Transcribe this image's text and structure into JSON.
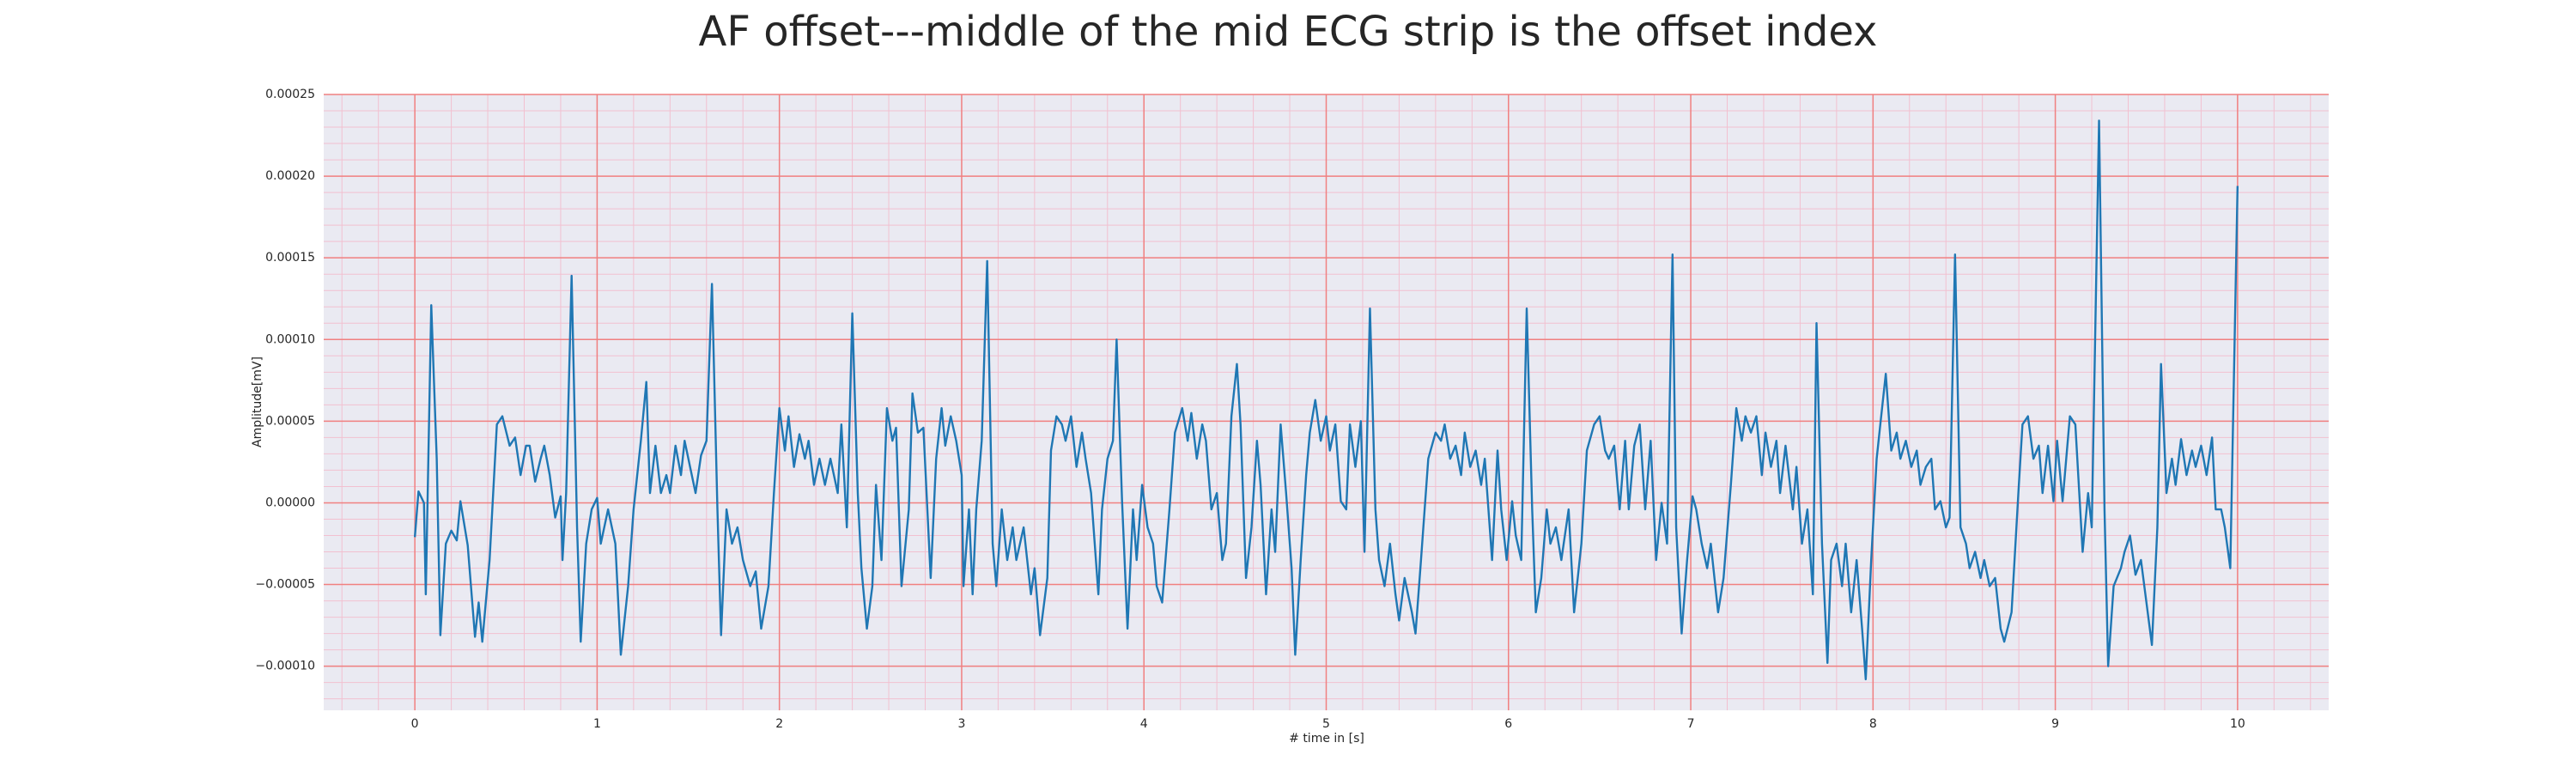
{
  "chart_data": {
    "type": "line",
    "title": "AF offset---middle of the mid ECG strip is the offset index",
    "x_label": "# time in [s]",
    "y_label": "Amplitude[mV]",
    "color": "#1f77b4",
    "grid": true,
    "minor_grid": true,
    "xlim": [
      -0.5,
      10.5
    ],
    "xticks": [
      0,
      1,
      2,
      3,
      4,
      5,
      6,
      7,
      8,
      9,
      10
    ],
    "ylim": [
      -0.000127,
      0.00025
    ],
    "yticks": [
      {
        "value": -0.0001,
        "label": "−0.00010"
      },
      {
        "value": -5e-05,
        "label": "−0.00005"
      },
      {
        "value": 0,
        "label": "0.00000"
      },
      {
        "value": 5e-05,
        "label": "0.00005"
      },
      {
        "value": 0.0001,
        "label": "0.00010"
      },
      {
        "value": 0.00015,
        "label": "0.00015"
      },
      {
        "value": 0.0002,
        "label": "0.00020"
      },
      0.00025
    ],
    "x": [
      0,
      0.02,
      0.05,
      0.06,
      0.09,
      0.12,
      0.14,
      0.17,
      0.2,
      0.23,
      0.25,
      0.29,
      0.33,
      0.35,
      0.37,
      0.41,
      0.45,
      0.48,
      0.52,
      0.55,
      0.58,
      0.61,
      0.63,
      0.66,
      0.69,
      0.71,
      0.74,
      0.77,
      0.8,
      0.81,
      0.83,
      0.86,
      0.89,
      0.91,
      0.94,
      0.97,
      1.0,
      1.02,
      1.06,
      1.1,
      1.13,
      1.17,
      1.2,
      1.24,
      1.27,
      1.29,
      1.32,
      1.35,
      1.38,
      1.4,
      1.43,
      1.46,
      1.48,
      1.51,
      1.54,
      1.57,
      1.6,
      1.63,
      1.66,
      1.68,
      1.71,
      1.74,
      1.77,
      1.8,
      1.84,
      1.87,
      1.9,
      1.94,
      1.97,
      2.0,
      2.03,
      2.05,
      2.08,
      2.11,
      2.14,
      2.16,
      2.19,
      2.22,
      2.25,
      2.28,
      2.32,
      2.34,
      2.37,
      2.4,
      2.43,
      2.45,
      2.48,
      2.51,
      2.53,
      2.56,
      2.59,
      2.62,
      2.64,
      2.67,
      2.71,
      2.73,
      2.76,
      2.79,
      2.81,
      2.83,
      2.86,
      2.89,
      2.91,
      2.94,
      2.97,
      3.0,
      3.01,
      3.04,
      3.06,
      3.08,
      3.11,
      3.14,
      3.17,
      3.19,
      3.22,
      3.25,
      3.28,
      3.3,
      3.34,
      3.38,
      3.4,
      3.43,
      3.47,
      3.49,
      3.52,
      3.55,
      3.57,
      3.6,
      3.63,
      3.66,
      3.68,
      3.71,
      3.75,
      3.77,
      3.8,
      3.83,
      3.85,
      3.88,
      3.91,
      3.94,
      3.96,
      3.99,
      4.02,
      4.05,
      4.07,
      4.1,
      4.14,
      4.17,
      4.21,
      4.24,
      4.26,
      4.29,
      4.32,
      4.34,
      4.37,
      4.4,
      4.43,
      4.45,
      4.48,
      4.51,
      4.53,
      4.56,
      4.59,
      4.62,
      4.64,
      4.67,
      4.7,
      4.72,
      4.75,
      4.78,
      4.81,
      4.83,
      4.86,
      4.89,
      4.91,
      4.94,
      4.97,
      5.0,
      5.02,
      5.05,
      5.08,
      5.11,
      5.13,
      5.16,
      5.19,
      5.21,
      5.24,
      5.27,
      5.29,
      5.32,
      5.35,
      5.38,
      5.4,
      5.43,
      5.47,
      5.49,
      5.52,
      5.56,
      5.6,
      5.63,
      5.65,
      5.68,
      5.71,
      5.74,
      5.76,
      5.79,
      5.82,
      5.85,
      5.87,
      5.91,
      5.94,
      5.96,
      5.99,
      6.02,
      6.04,
      6.07,
      6.1,
      6.13,
      6.15,
      6.18,
      6.21,
      6.23,
      6.26,
      6.29,
      6.33,
      6.36,
      6.4,
      6.43,
      6.47,
      6.5,
      6.53,
      6.55,
      6.58,
      6.61,
      6.64,
      6.66,
      6.69,
      6.72,
      6.75,
      6.78,
      6.81,
      6.84,
      6.87,
      6.9,
      6.92,
      6.95,
      6.98,
      7.01,
      7.03,
      7.06,
      7.09,
      7.11,
      7.15,
      7.18,
      7.22,
      7.25,
      7.28,
      7.3,
      7.33,
      7.36,
      7.39,
      7.41,
      7.44,
      7.47,
      7.49,
      7.52,
      7.56,
      7.58,
      7.61,
      7.64,
      7.67,
      7.69,
      7.72,
      7.75,
      7.77,
      7.8,
      7.83,
      7.85,
      7.88,
      7.91,
      7.94,
      7.96,
      7.99,
      8.02,
      8.04,
      8.07,
      8.1,
      8.13,
      8.15,
      8.18,
      8.21,
      8.24,
      8.26,
      8.29,
      8.32,
      8.34,
      8.37,
      8.4,
      8.42,
      8.45,
      8.48,
      8.51,
      8.53,
      8.56,
      8.59,
      8.61,
      8.64,
      8.67,
      8.7,
      8.72,
      8.76,
      8.8,
      8.82,
      8.85,
      8.88,
      8.91,
      8.93,
      8.96,
      8.99,
      9.01,
      9.04,
      9.08,
      9.11,
      9.15,
      9.18,
      9.2,
      9.24,
      9.27,
      9.29,
      9.32,
      9.36,
      9.38,
      9.41,
      9.44,
      9.47,
      9.5,
      9.53,
      9.56,
      9.58,
      9.61,
      9.64,
      9.66,
      9.69,
      9.72,
      9.75,
      9.77,
      9.8,
      9.83,
      9.86,
      9.88,
      9.91,
      9.93,
      9.96,
      10.0
    ],
    "values": [
      -2.1e-05,
      7e-06,
      0,
      -5.6e-05,
      0.000121,
      2.7e-05,
      -8.1e-05,
      -2.5e-05,
      -1.7e-05,
      -2.3e-05,
      1e-06,
      -2.6e-05,
      -8.2e-05,
      -6.1e-05,
      -8.5e-05,
      -3.5e-05,
      4.8e-05,
      5.3e-05,
      3.5e-05,
      4e-05,
      1.7e-05,
      3.5e-05,
      3.5e-05,
      1.3e-05,
      2.7e-05,
      3.5e-05,
      1.7e-05,
      -9e-06,
      4e-06,
      -3.5e-05,
      6e-06,
      0.000139,
      -1.5e-05,
      -8.5e-05,
      -2.5e-05,
      -4e-06,
      3e-06,
      -2.5e-05,
      -4e-06,
      -2.5e-05,
      -9.3e-05,
      -5.1e-05,
      -4e-06,
      3.8e-05,
      7.4e-05,
      6e-06,
      3.5e-05,
      6e-06,
      1.7e-05,
      6e-06,
      3.5e-05,
      1.7e-05,
      3.8e-05,
      2.2e-05,
      6e-06,
      2.9e-05,
      3.8e-05,
      0.000134,
      -4e-06,
      -8.1e-05,
      -4e-06,
      -2.5e-05,
      -1.5e-05,
      -3.5e-05,
      -5.1e-05,
      -4.2e-05,
      -7.7e-05,
      -5.1e-05,
      6e-06,
      5.8e-05,
      3.2e-05,
      5.3e-05,
      2.2e-05,
      4.2e-05,
      2.7e-05,
      3.8e-05,
      1.1e-05,
      2.7e-05,
      1.1e-05,
      2.7e-05,
      6e-06,
      4.8e-05,
      -1.5e-05,
      0.000116,
      6e-06,
      -4e-05,
      -7.7e-05,
      -5.1e-05,
      1.1e-05,
      -3.5e-05,
      5.8e-05,
      3.8e-05,
      4.6e-05,
      -5.1e-05,
      -4e-06,
      6.7e-05,
      4.3e-05,
      4.6e-05,
      0,
      -4.6e-05,
      2.7e-05,
      5.8e-05,
      3.5e-05,
      5.3e-05,
      3.8e-05,
      1.7e-05,
      -5.1e-05,
      -4e-06,
      -5.6e-05,
      -4e-06,
      3.8e-05,
      0.000148,
      -2.5e-05,
      -5.1e-05,
      -4e-06,
      -3.5e-05,
      -1.5e-05,
      -3.5e-05,
      -1.5e-05,
      -5.6e-05,
      -4e-05,
      -8.1e-05,
      -4.6e-05,
      3.2e-05,
      5.3e-05,
      4.8e-05,
      3.8e-05,
      5.3e-05,
      2.2e-05,
      4.3e-05,
      2.7e-05,
      6e-06,
      -5.6e-05,
      -4e-06,
      2.7e-05,
      3.8e-05,
      0.0001,
      1e-06,
      -7.7e-05,
      -4e-06,
      -3.5e-05,
      1.1e-05,
      -1.5e-05,
      -2.5e-05,
      -5.1e-05,
      -6.1e-05,
      -4e-06,
      4.3e-05,
      5.8e-05,
      3.8e-05,
      5.5e-05,
      2.7e-05,
      4.8e-05,
      3.8e-05,
      -4e-06,
      6e-06,
      -3.5e-05,
      -2.5e-05,
      5.3e-05,
      8.5e-05,
      4.8e-05,
      -4.6e-05,
      -1.5e-05,
      3.8e-05,
      1.1e-05,
      -5.6e-05,
      -4e-06,
      -3e-05,
      4.8e-05,
      6e-06,
      -4e-05,
      -9.3e-05,
      -3.5e-05,
      1.7e-05,
      4.3e-05,
      6.3e-05,
      3.8e-05,
      5.3e-05,
      3.2e-05,
      4.8e-05,
      1e-06,
      -4e-06,
      4.8e-05,
      2.2e-05,
      5e-05,
      -3e-05,
      0.000119,
      -4e-06,
      -3.5e-05,
      -5.1e-05,
      -2.5e-05,
      -5.6e-05,
      -7.2e-05,
      -4.6e-05,
      -6.7e-05,
      -8e-05,
      -3.5e-05,
      2.7e-05,
      4.3e-05,
      3.8e-05,
      4.8e-05,
      2.7e-05,
      3.5e-05,
      1.7e-05,
      4.3e-05,
      2.2e-05,
      3.2e-05,
      1.1e-05,
      2.7e-05,
      -3.5e-05,
      3.2e-05,
      -4e-06,
      -3.5e-05,
      1e-06,
      -2e-05,
      -3.5e-05,
      0.000119,
      -4e-06,
      -6.7e-05,
      -4.6e-05,
      -4e-06,
      -2.5e-05,
      -1.5e-05,
      -3.5e-05,
      -4e-06,
      -6.7e-05,
      -2.5e-05,
      3.2e-05,
      4.8e-05,
      5.3e-05,
      3.2e-05,
      2.7e-05,
      3.5e-05,
      -4e-06,
      3.8e-05,
      -4e-06,
      3.5e-05,
      4.8e-05,
      -4e-06,
      3.8e-05,
      -3.5e-05,
      0,
      -2.5e-05,
      0.000152,
      -1.5e-05,
      -8e-05,
      -3.5e-05,
      4e-06,
      -4e-06,
      -2.5e-05,
      -4e-05,
      -2.5e-05,
      -6.7e-05,
      -4.6e-05,
      1.1e-05,
      5.8e-05,
      3.8e-05,
      5.3e-05,
      4.3e-05,
      5.3e-05,
      1.7e-05,
      4.3e-05,
      2.2e-05,
      3.8e-05,
      6e-06,
      3.5e-05,
      -4e-06,
      2.2e-05,
      -2.5e-05,
      -4e-06,
      -5.6e-05,
      0.00011,
      -2.5e-05,
      -9.8e-05,
      -3.5e-05,
      -2.5e-05,
      -5.1e-05,
      -2.5e-05,
      -6.7e-05,
      -3.5e-05,
      -7.7e-05,
      -0.000108,
      -3.5e-05,
      2.7e-05,
      4.8e-05,
      7.9e-05,
      3.2e-05,
      4.3e-05,
      2.7e-05,
      3.8e-05,
      2.2e-05,
      3.2e-05,
      1.1e-05,
      2.2e-05,
      2.7e-05,
      -4e-06,
      1e-06,
      -1.5e-05,
      -9e-06,
      0.000152,
      -1.5e-05,
      -2.5e-05,
      -4e-05,
      -3e-05,
      -4.6e-05,
      -3.5e-05,
      -5.1e-05,
      -4.6e-05,
      -7.7e-05,
      -8.5e-05,
      -6.7e-05,
      1.1e-05,
      4.8e-05,
      5.3e-05,
      2.7e-05,
      3.5e-05,
      6e-06,
      3.5e-05,
      1e-06,
      3.8e-05,
      1e-06,
      5.3e-05,
      4.8e-05,
      -3e-05,
      6e-06,
      -1.5e-05,
      0.000234,
      -4e-06,
      -0.0001,
      -5.1e-05,
      -4e-05,
      -3e-05,
      -2e-05,
      -4.4e-05,
      -3.5e-05,
      -6.1e-05,
      -8.7e-05,
      -1.5e-05,
      8.5e-05,
      6e-06,
      2.7e-05,
      1.1e-05,
      3.9e-05,
      1.7e-05,
      3.2e-05,
      2.2e-05,
      3.5e-05,
      1.7e-05,
      4e-05,
      -4e-06,
      -4e-06,
      -1.5e-05,
      -4e-05,
      0.000194
    ]
  }
}
